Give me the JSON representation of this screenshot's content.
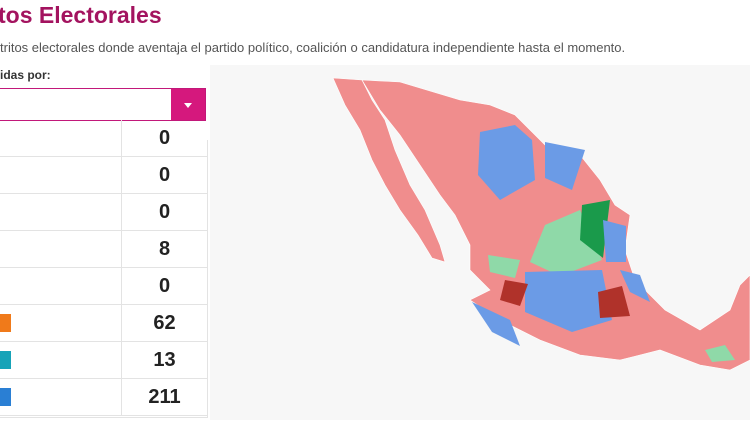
{
  "header": {
    "title": "tos Electorales",
    "description": "tritos electorales donde aventaja el partido político, coalición o candidatura independiente hasta el momento.",
    "filter_label": "idas por:"
  },
  "table": {
    "rows": [
      "0",
      "0",
      "0",
      "8",
      "0",
      "62",
      "13",
      "211"
    ]
  }
}
